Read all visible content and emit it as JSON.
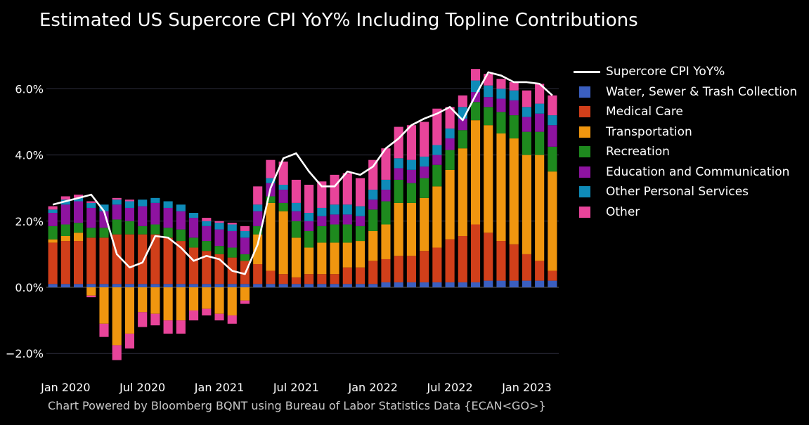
{
  "title": "Estimated US Supercore CPI YoY% Including Topline Contributions",
  "footer": "Chart Powered by Bloomberg BQNT using Bureau of Labor Statistics Data    {ECAN<GO>}",
  "chart_data": {
    "type": "bar",
    "stacked": true,
    "title": "Estimated US Supercore CPI YoY% Including Topline Contributions",
    "ylim": [
      -2.5,
      6.8
    ],
    "yticks": [
      -2,
      0,
      2,
      4,
      6
    ],
    "ytick_labels": [
      "−2.0%",
      "0.0%",
      "2.0%",
      "4.0%",
      "6.0%"
    ],
    "grid": true,
    "legend_position": "right",
    "categories": [
      "Dec 2019",
      "Jan 2020",
      "Feb 2020",
      "Mar 2020",
      "Apr 2020",
      "May 2020",
      "Jun 2020",
      "Jul 2020",
      "Aug 2020",
      "Sep 2020",
      "Oct 2020",
      "Nov 2020",
      "Dec 2020",
      "Jan 2021",
      "Feb 2021",
      "Mar 2021",
      "Apr 2021",
      "May 2021",
      "Jun 2021",
      "Jul 2021",
      "Aug 2021",
      "Sep 2021",
      "Oct 2021",
      "Nov 2021",
      "Dec 2021",
      "Jan 2022",
      "Feb 2022",
      "Mar 2022",
      "Apr 2022",
      "May 2022",
      "Jun 2022",
      "Jul 2022",
      "Aug 2022",
      "Sep 2022",
      "Oct 2022",
      "Nov 2022",
      "Dec 2022",
      "Jan 2023",
      "Feb 2023",
      "Mar 2023"
    ],
    "xtick_labels": [
      {
        "index": 1,
        "label": "Jan 2020"
      },
      {
        "index": 7,
        "label": "Jul 2020"
      },
      {
        "index": 13,
        "label": "Jan 2021"
      },
      {
        "index": 19,
        "label": "Jul 2021"
      },
      {
        "index": 25,
        "label": "Jan 2022"
      },
      {
        "index": 31,
        "label": "Jul 2022"
      },
      {
        "index": 37,
        "label": "Jan 2023"
      }
    ],
    "series": [
      {
        "name": "Water, Sewer & Trash Collection",
        "color": "#3b5fc0",
        "values": [
          0.1,
          0.1,
          0.1,
          0.1,
          0.1,
          0.1,
          0.1,
          0.1,
          0.1,
          0.1,
          0.1,
          0.1,
          0.1,
          0.1,
          0.1,
          0.1,
          0.1,
          0.1,
          0.1,
          0.1,
          0.1,
          0.1,
          0.1,
          0.1,
          0.1,
          0.1,
          0.15,
          0.15,
          0.15,
          0.15,
          0.15,
          0.15,
          0.15,
          0.15,
          0.2,
          0.2,
          0.2,
          0.2,
          0.2,
          0.2
        ]
      },
      {
        "name": "Medical Care",
        "color": "#d13f1a",
        "values": [
          1.25,
          1.3,
          1.3,
          1.4,
          1.4,
          1.5,
          1.5,
          1.5,
          1.5,
          1.4,
          1.3,
          1.1,
          1.0,
          0.9,
          0.8,
          0.7,
          0.6,
          0.4,
          0.3,
          0.2,
          0.3,
          0.3,
          0.3,
          0.5,
          0.5,
          0.7,
          0.7,
          0.8,
          0.8,
          0.95,
          1.05,
          1.3,
          1.4,
          1.75,
          1.45,
          1.2,
          1.1,
          0.8,
          0.6,
          0.3
        ]
      },
      {
        "name": "Transportation",
        "color": "#f0960f",
        "values": [
          0.1,
          0.15,
          0.25,
          -0.25,
          -1.1,
          -1.75,
          -1.4,
          -0.75,
          -0.8,
          -1.0,
          -1.0,
          -0.7,
          -0.65,
          -0.8,
          -0.85,
          -0.4,
          0.9,
          2.05,
          1.9,
          1.2,
          0.8,
          0.95,
          0.95,
          0.75,
          0.8,
          0.9,
          1.05,
          1.6,
          1.6,
          1.6,
          1.85,
          2.1,
          2.65,
          3.15,
          3.25,
          3.25,
          3.2,
          3.0,
          3.2,
          3.0
        ]
      },
      {
        "name": "Recreation",
        "color": "#1e8a1e",
        "values": [
          0.4,
          0.35,
          0.3,
          0.3,
          0.3,
          0.45,
          0.4,
          0.25,
          0.3,
          0.3,
          0.35,
          0.3,
          0.3,
          0.25,
          0.3,
          0.2,
          0.25,
          0.2,
          0.25,
          0.5,
          0.5,
          0.5,
          0.55,
          0.55,
          0.45,
          0.65,
          0.7,
          0.7,
          0.6,
          0.6,
          0.65,
          0.6,
          0.55,
          0.55,
          0.55,
          0.65,
          0.7,
          0.7,
          0.7,
          0.75
        ]
      },
      {
        "name": "Education and Communication",
        "color": "#8e13a0",
        "values": [
          0.4,
          0.6,
          0.65,
          0.6,
          0.5,
          0.45,
          0.4,
          0.6,
          0.65,
          0.6,
          0.55,
          0.6,
          0.45,
          0.5,
          0.5,
          0.5,
          0.45,
          0.4,
          0.4,
          0.3,
          0.3,
          0.3,
          0.3,
          0.3,
          0.3,
          0.3,
          0.35,
          0.35,
          0.4,
          0.35,
          0.3,
          0.35,
          0.35,
          0.3,
          0.3,
          0.4,
          0.45,
          0.45,
          0.55,
          0.65
        ]
      },
      {
        "name": "Other Personal Services",
        "color": "#0f8bb8",
        "values": [
          0.1,
          0.15,
          0.1,
          0.15,
          0.2,
          0.15,
          0.2,
          0.2,
          0.15,
          0.2,
          0.2,
          0.15,
          0.15,
          0.2,
          0.2,
          0.2,
          0.2,
          0.15,
          0.15,
          0.25,
          0.25,
          0.25,
          0.3,
          0.3,
          0.3,
          0.3,
          0.3,
          0.3,
          0.3,
          0.3,
          0.3,
          0.3,
          0.35,
          0.35,
          0.35,
          0.3,
          0.3,
          0.3,
          0.3,
          0.3
        ]
      },
      {
        "name": "Other",
        "color": "#e8449a",
        "values": [
          0.1,
          0.1,
          0.1,
          0.05,
          0.0,
          0.05,
          0.05,
          0.0,
          0.0,
          0.0,
          0.0,
          0.0,
          0.1,
          0.05,
          0.05,
          0.15,
          0.55,
          0.55,
          0.7,
          0.7,
          0.85,
          0.8,
          0.9,
          0.95,
          0.85,
          0.9,
          0.95,
          0.95,
          1.05,
          1.05,
          1.1,
          0.65,
          0.35,
          0.35,
          0.35,
          0.3,
          0.25,
          0.5,
          0.6,
          0.6
        ]
      },
      {
        "name": "Other (negative)",
        "color": "#e8449a",
        "negative_only": true,
        "values": [
          0,
          0,
          0,
          -0.05,
          -0.4,
          -0.45,
          -0.45,
          -0.45,
          -0.35,
          -0.4,
          -0.4,
          -0.3,
          -0.2,
          -0.2,
          -0.25,
          -0.1,
          0,
          0,
          0,
          0,
          0,
          0,
          0,
          0,
          0,
          0,
          0,
          0,
          0,
          0,
          0,
          0,
          0,
          0,
          0,
          0,
          0,
          0,
          0,
          0
        ]
      }
    ],
    "line": {
      "name": "Supercore CPI YoY%",
      "color": "#ffffff",
      "values": [
        2.5,
        2.6,
        2.7,
        2.8,
        2.3,
        1.0,
        0.6,
        0.75,
        1.55,
        1.5,
        1.2,
        0.8,
        0.95,
        0.85,
        0.5,
        0.4,
        1.3,
        3.0,
        3.9,
        4.05,
        3.5,
        3.05,
        3.05,
        3.5,
        3.4,
        3.65,
        4.2,
        4.5,
        4.9,
        5.1,
        5.25,
        5.45,
        5.05,
        5.8,
        6.5,
        6.4,
        6.2,
        6.2,
        6.15,
        5.8
      ]
    },
    "legend": [
      {
        "label": "Supercore CPI YoY%",
        "kind": "line",
        "color": "#ffffff"
      },
      {
        "label": "Water, Sewer & Trash Collection",
        "kind": "swatch",
        "color": "#3b5fc0"
      },
      {
        "label": "Medical Care",
        "kind": "swatch",
        "color": "#d13f1a"
      },
      {
        "label": "Transportation",
        "kind": "swatch",
        "color": "#f0960f"
      },
      {
        "label": "Recreation",
        "kind": "swatch",
        "color": "#1e8a1e"
      },
      {
        "label": "Education and Communication",
        "kind": "swatch",
        "color": "#8e13a0"
      },
      {
        "label": "Other Personal Services",
        "kind": "swatch",
        "color": "#0f8bb8"
      },
      {
        "label": "Other",
        "kind": "swatch",
        "color": "#e8449a"
      }
    ]
  }
}
